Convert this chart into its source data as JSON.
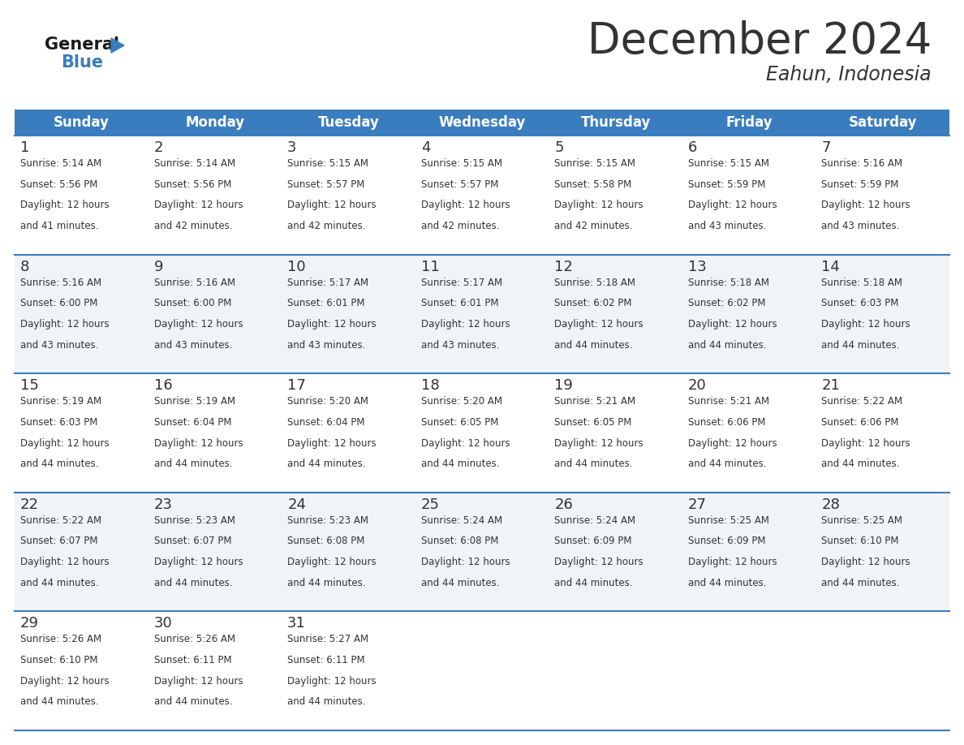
{
  "title": "December 2024",
  "subtitle": "Eahun, Indonesia",
  "header_color": "#3a7dbf",
  "header_text_color": "#FFFFFF",
  "days_of_week": [
    "Sunday",
    "Monday",
    "Tuesday",
    "Wednesday",
    "Thursday",
    "Friday",
    "Saturday"
  ],
  "weeks": [
    [
      {
        "day": 1,
        "sunrise": "5:14 AM",
        "sunset": "5:56 PM",
        "daylight_hours": 12,
        "daylight_minutes": 41
      },
      {
        "day": 2,
        "sunrise": "5:14 AM",
        "sunset": "5:56 PM",
        "daylight_hours": 12,
        "daylight_minutes": 42
      },
      {
        "day": 3,
        "sunrise": "5:15 AM",
        "sunset": "5:57 PM",
        "daylight_hours": 12,
        "daylight_minutes": 42
      },
      {
        "day": 4,
        "sunrise": "5:15 AM",
        "sunset": "5:57 PM",
        "daylight_hours": 12,
        "daylight_minutes": 42
      },
      {
        "day": 5,
        "sunrise": "5:15 AM",
        "sunset": "5:58 PM",
        "daylight_hours": 12,
        "daylight_minutes": 42
      },
      {
        "day": 6,
        "sunrise": "5:15 AM",
        "sunset": "5:59 PM",
        "daylight_hours": 12,
        "daylight_minutes": 43
      },
      {
        "day": 7,
        "sunrise": "5:16 AM",
        "sunset": "5:59 PM",
        "daylight_hours": 12,
        "daylight_minutes": 43
      }
    ],
    [
      {
        "day": 8,
        "sunrise": "5:16 AM",
        "sunset": "6:00 PM",
        "daylight_hours": 12,
        "daylight_minutes": 43
      },
      {
        "day": 9,
        "sunrise": "5:16 AM",
        "sunset": "6:00 PM",
        "daylight_hours": 12,
        "daylight_minutes": 43
      },
      {
        "day": 10,
        "sunrise": "5:17 AM",
        "sunset": "6:01 PM",
        "daylight_hours": 12,
        "daylight_minutes": 43
      },
      {
        "day": 11,
        "sunrise": "5:17 AM",
        "sunset": "6:01 PM",
        "daylight_hours": 12,
        "daylight_minutes": 43
      },
      {
        "day": 12,
        "sunrise": "5:18 AM",
        "sunset": "6:02 PM",
        "daylight_hours": 12,
        "daylight_minutes": 44
      },
      {
        "day": 13,
        "sunrise": "5:18 AM",
        "sunset": "6:02 PM",
        "daylight_hours": 12,
        "daylight_minutes": 44
      },
      {
        "day": 14,
        "sunrise": "5:18 AM",
        "sunset": "6:03 PM",
        "daylight_hours": 12,
        "daylight_minutes": 44
      }
    ],
    [
      {
        "day": 15,
        "sunrise": "5:19 AM",
        "sunset": "6:03 PM",
        "daylight_hours": 12,
        "daylight_minutes": 44
      },
      {
        "day": 16,
        "sunrise": "5:19 AM",
        "sunset": "6:04 PM",
        "daylight_hours": 12,
        "daylight_minutes": 44
      },
      {
        "day": 17,
        "sunrise": "5:20 AM",
        "sunset": "6:04 PM",
        "daylight_hours": 12,
        "daylight_minutes": 44
      },
      {
        "day": 18,
        "sunrise": "5:20 AM",
        "sunset": "6:05 PM",
        "daylight_hours": 12,
        "daylight_minutes": 44
      },
      {
        "day": 19,
        "sunrise": "5:21 AM",
        "sunset": "6:05 PM",
        "daylight_hours": 12,
        "daylight_minutes": 44
      },
      {
        "day": 20,
        "sunrise": "5:21 AM",
        "sunset": "6:06 PM",
        "daylight_hours": 12,
        "daylight_minutes": 44
      },
      {
        "day": 21,
        "sunrise": "5:22 AM",
        "sunset": "6:06 PM",
        "daylight_hours": 12,
        "daylight_minutes": 44
      }
    ],
    [
      {
        "day": 22,
        "sunrise": "5:22 AM",
        "sunset": "6:07 PM",
        "daylight_hours": 12,
        "daylight_minutes": 44
      },
      {
        "day": 23,
        "sunrise": "5:23 AM",
        "sunset": "6:07 PM",
        "daylight_hours": 12,
        "daylight_minutes": 44
      },
      {
        "day": 24,
        "sunrise": "5:23 AM",
        "sunset": "6:08 PM",
        "daylight_hours": 12,
        "daylight_minutes": 44
      },
      {
        "day": 25,
        "sunrise": "5:24 AM",
        "sunset": "6:08 PM",
        "daylight_hours": 12,
        "daylight_minutes": 44
      },
      {
        "day": 26,
        "sunrise": "5:24 AM",
        "sunset": "6:09 PM",
        "daylight_hours": 12,
        "daylight_minutes": 44
      },
      {
        "day": 27,
        "sunrise": "5:25 AM",
        "sunset": "6:09 PM",
        "daylight_hours": 12,
        "daylight_minutes": 44
      },
      {
        "day": 28,
        "sunrise": "5:25 AM",
        "sunset": "6:10 PM",
        "daylight_hours": 12,
        "daylight_minutes": 44
      }
    ],
    [
      {
        "day": 29,
        "sunrise": "5:26 AM",
        "sunset": "6:10 PM",
        "daylight_hours": 12,
        "daylight_minutes": 44
      },
      {
        "day": 30,
        "sunrise": "5:26 AM",
        "sunset": "6:11 PM",
        "daylight_hours": 12,
        "daylight_minutes": 44
      },
      {
        "day": 31,
        "sunrise": "5:27 AM",
        "sunset": "6:11 PM",
        "daylight_hours": 12,
        "daylight_minutes": 44
      },
      null,
      null,
      null,
      null
    ]
  ],
  "bg_color": "#FFFFFF",
  "cell_bg_light": "#FFFFFF",
  "cell_bg_gray": "#f0f4f8",
  "row_line_color": "#3a7dbf",
  "text_color": "#333333",
  "day_number_color": "#333333",
  "logo_general_color": "#1A1A1A",
  "logo_blue_color": "#3a7dbf",
  "title_fontsize": 38,
  "subtitle_fontsize": 17,
  "header_fontsize": 12,
  "day_num_fontsize": 13,
  "cell_text_fontsize": 8.5
}
